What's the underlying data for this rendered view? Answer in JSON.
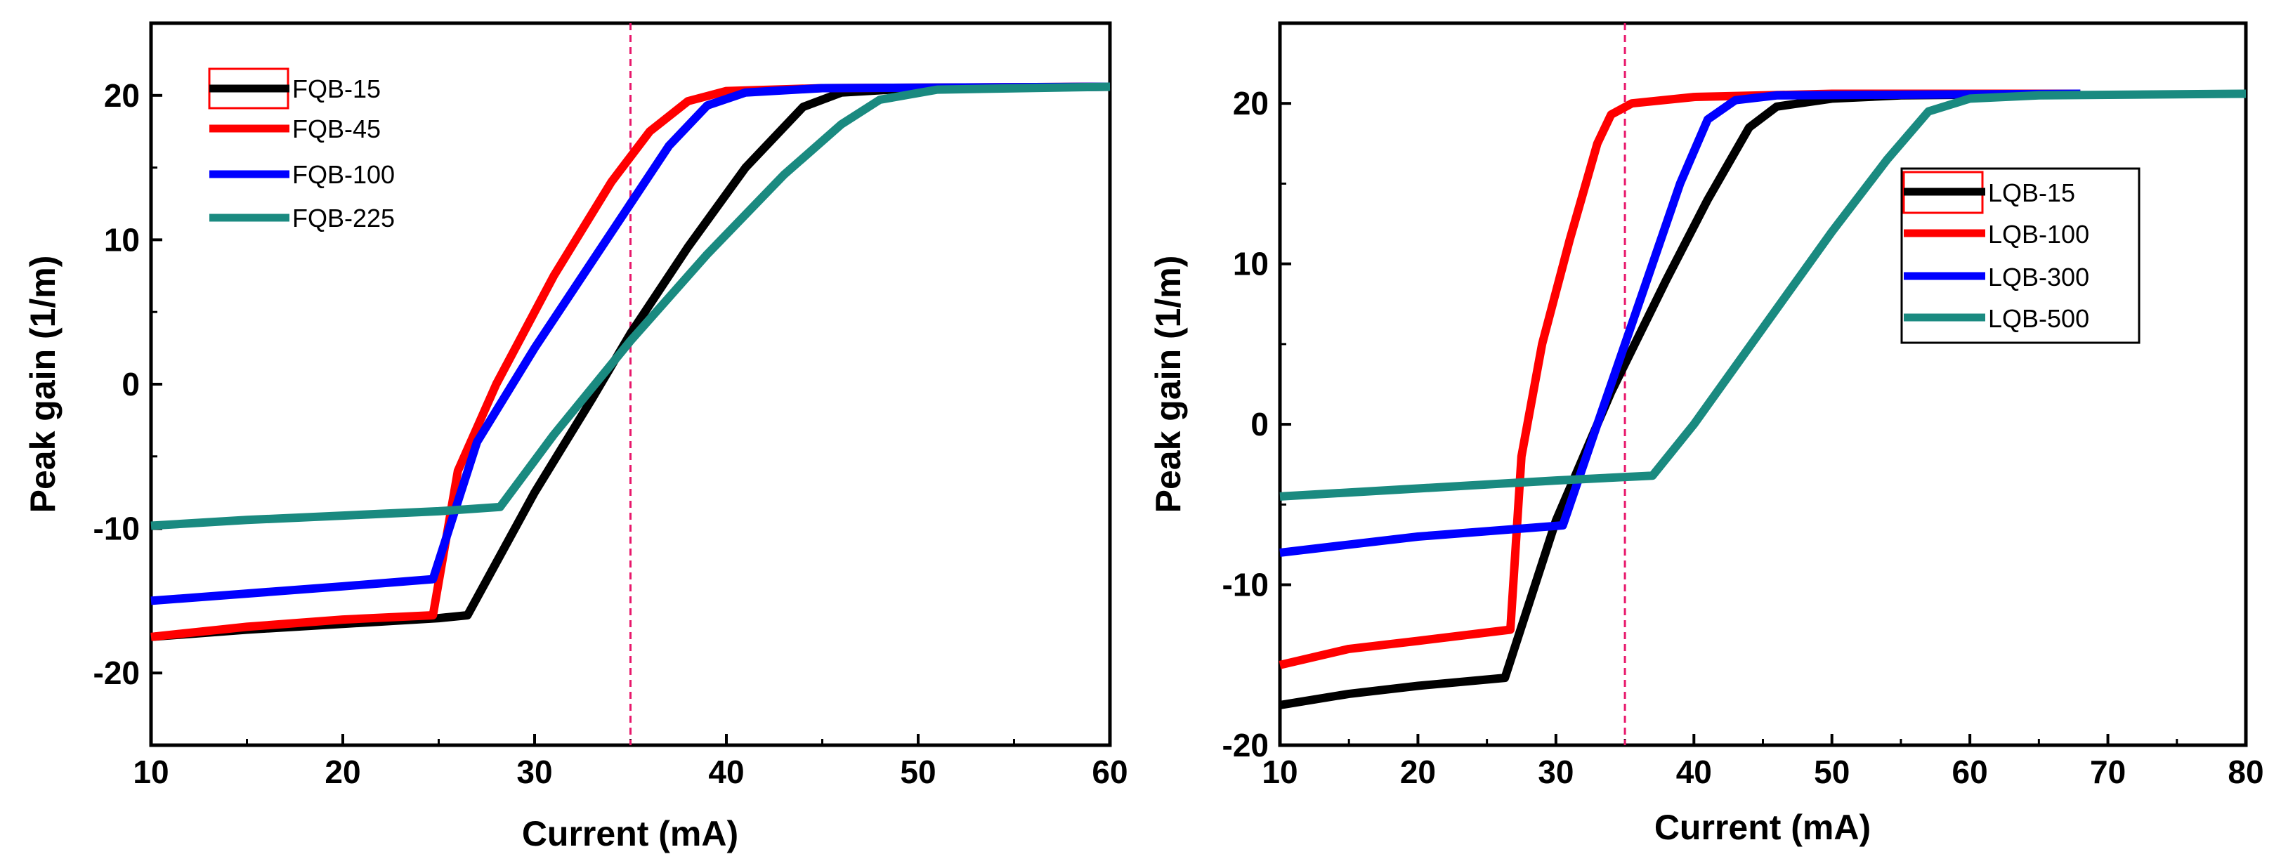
{
  "chart_data": [
    {
      "type": "line",
      "xlabel": "Current (mA)",
      "ylabel": "Peak gain (1/m)",
      "xlim": [
        10,
        60
      ],
      "ylim": [
        -25,
        25
      ],
      "xticks": [
        10,
        20,
        30,
        40,
        50,
        60
      ],
      "yticks": [
        -20,
        -10,
        0,
        10,
        20
      ],
      "reference_line": {
        "x": 35,
        "color": "#e8176b",
        "style": "dashed"
      },
      "legend_position": "top-left",
      "series": [
        {
          "name": "FQB-15",
          "color": "#000000",
          "points": [
            [
              10,
              -17.5
            ],
            [
              15,
              -17
            ],
            [
              20,
              -16.6
            ],
            [
              25,
              -16.2
            ],
            [
              26.5,
              -16
            ],
            [
              30,
              -7.5
            ],
            [
              33,
              -1
            ],
            [
              35,
              3.5
            ],
            [
              38,
              9.5
            ],
            [
              41,
              15
            ],
            [
              44,
              19.2
            ],
            [
              46,
              20.2
            ],
            [
              50,
              20.5
            ],
            [
              60,
              20.6
            ]
          ]
        },
        {
          "name": "FQB-45",
          "color": "#ff0000",
          "points": [
            [
              10,
              -17.5
            ],
            [
              15,
              -16.8
            ],
            [
              20,
              -16.3
            ],
            [
              24.7,
              -16
            ],
            [
              26,
              -6
            ],
            [
              28,
              0
            ],
            [
              31,
              7.5
            ],
            [
              34,
              14
            ],
            [
              36,
              17.5
            ],
            [
              38,
              19.6
            ],
            [
              40,
              20.3
            ],
            [
              45,
              20.5
            ],
            [
              60,
              20.6
            ]
          ]
        },
        {
          "name": "FQB-100",
          "color": "#0000ff",
          "points": [
            [
              10,
              -15
            ],
            [
              15,
              -14.5
            ],
            [
              20,
              -14
            ],
            [
              24.7,
              -13.5
            ],
            [
              27,
              -4
            ],
            [
              30,
              2.5
            ],
            [
              33,
              8.5
            ],
            [
              35,
              12.5
            ],
            [
              37,
              16.5
            ],
            [
              39,
              19.3
            ],
            [
              41,
              20.2
            ],
            [
              45,
              20.5
            ],
            [
              60,
              20.6
            ]
          ]
        },
        {
          "name": "FQB-225",
          "color": "#1a8a80",
          "points": [
            [
              10,
              -9.8
            ],
            [
              15,
              -9.4
            ],
            [
              20,
              -9.1
            ],
            [
              25,
              -8.8
            ],
            [
              28.2,
              -8.5
            ],
            [
              31,
              -3.5
            ],
            [
              35,
              3
            ],
            [
              39,
              9
            ],
            [
              43,
              14.5
            ],
            [
              46,
              18
            ],
            [
              48,
              19.7
            ],
            [
              51,
              20.4
            ],
            [
              60,
              20.6
            ]
          ]
        }
      ]
    },
    {
      "type": "line",
      "xlabel": "Current (mA)",
      "ylabel": "Peak gain (1/m)",
      "xlim": [
        10,
        80
      ],
      "ylim": [
        -20,
        25
      ],
      "xticks": [
        10,
        20,
        30,
        40,
        50,
        60,
        70,
        80
      ],
      "yticks": [
        -20,
        -10,
        0,
        10,
        20
      ],
      "reference_line": {
        "x": 35,
        "color": "#e8176b",
        "style": "dashed"
      },
      "legend_position": "middle-right",
      "series": [
        {
          "name": "LQB-15",
          "color": "#000000",
          "points": [
            [
              10,
              -17.5
            ],
            [
              15,
              -16.8
            ],
            [
              20,
              -16.3
            ],
            [
              26.3,
              -15.8
            ],
            [
              30,
              -6
            ],
            [
              34,
              2
            ],
            [
              38,
              9
            ],
            [
              41,
              14
            ],
            [
              44,
              18.5
            ],
            [
              46,
              19.8
            ],
            [
              50,
              20.3
            ],
            [
              55,
              20.5
            ],
            [
              68,
              20.6
            ]
          ]
        },
        {
          "name": "LQB-100",
          "color": "#ff0000",
          "points": [
            [
              10,
              -15
            ],
            [
              15,
              -14
            ],
            [
              20,
              -13.5
            ],
            [
              26.7,
              -12.8
            ],
            [
              27.5,
              -2
            ],
            [
              29,
              5
            ],
            [
              31,
              11.5
            ],
            [
              33,
              17.5
            ],
            [
              34,
              19.3
            ],
            [
              35.5,
              20
            ],
            [
              40,
              20.4
            ],
            [
              50,
              20.6
            ],
            [
              68,
              20.6
            ]
          ]
        },
        {
          "name": "LQB-300",
          "color": "#0000ff",
          "points": [
            [
              10,
              -8
            ],
            [
              15,
              -7.5
            ],
            [
              20,
              -7
            ],
            [
              30.5,
              -6.3
            ],
            [
              33,
              0
            ],
            [
              35,
              5
            ],
            [
              37,
              10
            ],
            [
              39,
              15
            ],
            [
              41,
              19
            ],
            [
              43,
              20.2
            ],
            [
              46,
              20.5
            ],
            [
              68,
              20.6
            ]
          ]
        },
        {
          "name": "LQB-500",
          "color": "#1a8a80",
          "points": [
            [
              10,
              -4.5
            ],
            [
              20,
              -4
            ],
            [
              30,
              -3.5
            ],
            [
              37,
              -3.2
            ],
            [
              40,
              0
            ],
            [
              45,
              6
            ],
            [
              50,
              12
            ],
            [
              54,
              16.5
            ],
            [
              57,
              19.5
            ],
            [
              60,
              20.3
            ],
            [
              65,
              20.5
            ],
            [
              80,
              20.6
            ]
          ]
        }
      ]
    }
  ]
}
